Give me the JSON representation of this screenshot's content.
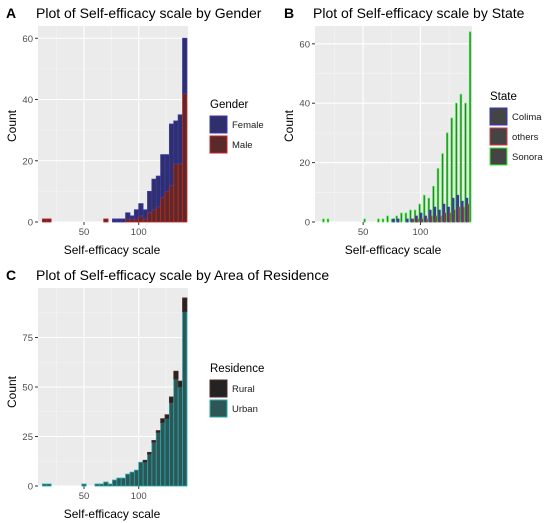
{
  "chart_data": [
    {
      "id": "A",
      "type": "bar",
      "stacked": true,
      "panel_label": "A",
      "title": "Plot of Self-efficacy scale by Gender",
      "xlabel": "Self-efficacy scale",
      "ylabel": "Count",
      "xlim": [
        8,
        145
      ],
      "ylim": [
        0,
        64
      ],
      "x_ticks": [
        50,
        100
      ],
      "y_ticks": [
        0,
        20,
        40,
        60
      ],
      "grid": true,
      "legend": {
        "title": "Gender",
        "placement": "right"
      },
      "bins": [
        14,
        18,
        22,
        26,
        30,
        34,
        38,
        42,
        46,
        50,
        54,
        58,
        62,
        66,
        70,
        74,
        78,
        82,
        86,
        90,
        94,
        98,
        102,
        106,
        110,
        114,
        118,
        122,
        126,
        130,
        134,
        138,
        142
      ],
      "series": [
        {
          "name": "Female",
          "fill": "#2f2f6b",
          "border": "#3a3ab0",
          "values": [
            0,
            0,
            0,
            0,
            0,
            0,
            0,
            0,
            0,
            0,
            0,
            0,
            0,
            0,
            0,
            0,
            1,
            1,
            1,
            2,
            1,
            3,
            4,
            3,
            7,
            10,
            10,
            14,
            12,
            20,
            14,
            16,
            18
          ]
        },
        {
          "name": "Male",
          "fill": "#5a2a2a",
          "border": "#cc2222",
          "values": [
            1,
            1,
            0,
            0,
            0,
            0,
            0,
            0,
            0,
            0,
            0,
            0,
            0,
            0,
            1,
            0,
            0,
            0,
            0,
            1,
            1,
            1,
            2,
            1,
            3,
            4,
            5,
            8,
            10,
            12,
            19,
            19,
            42
          ]
        }
      ]
    },
    {
      "id": "B",
      "type": "bar",
      "grouped": true,
      "panel_label": "B",
      "title": "Plot of Self-efficacy scale by State",
      "xlabel": "Self-efficacy scale",
      "ylabel": "Count",
      "xlim": [
        8,
        145
      ],
      "ylim": [
        0,
        66
      ],
      "x_ticks": [
        50,
        100
      ],
      "y_ticks": [
        0,
        20,
        40,
        60
      ],
      "grid": true,
      "legend": {
        "title": "State",
        "placement": "right"
      },
      "bins": [
        14,
        18,
        22,
        26,
        30,
        34,
        38,
        42,
        46,
        50,
        54,
        58,
        62,
        66,
        70,
        74,
        78,
        82,
        86,
        90,
        94,
        98,
        102,
        106,
        110,
        114,
        118,
        122,
        126,
        130,
        134,
        138,
        142
      ],
      "series": [
        {
          "name": "Colima",
          "fill": "#444444",
          "border": "#3333cc",
          "values": [
            0,
            0,
            0,
            0,
            0,
            0,
            0,
            0,
            0,
            0,
            0,
            0,
            0,
            0,
            0,
            0,
            1,
            1,
            0,
            1,
            1,
            2,
            3,
            2,
            4,
            5,
            4,
            6,
            5,
            8,
            9,
            7,
            8
          ]
        },
        {
          "name": "others",
          "fill": "#444444",
          "border": "#dd3344",
          "values": [
            0,
            0,
            0,
            0,
            0,
            0,
            0,
            0,
            0,
            0,
            0,
            0,
            0,
            0,
            0,
            0,
            0,
            0,
            0,
            0,
            1,
            1,
            1,
            1,
            2,
            2,
            2,
            3,
            3,
            4,
            5,
            5,
            6
          ]
        },
        {
          "name": "Sonora",
          "fill": "#444444",
          "border": "#33ee33",
          "values": [
            1,
            1,
            0,
            0,
            0,
            0,
            0,
            0,
            0,
            1,
            0,
            0,
            1,
            1,
            2,
            1,
            2,
            3,
            3,
            4,
            4,
            6,
            9,
            8,
            12,
            18,
            23,
            30,
            35,
            40,
            43,
            40,
            64
          ]
        }
      ]
    },
    {
      "id": "C",
      "type": "bar",
      "stacked": true,
      "panel_label": "C",
      "title": "Plot of Self-efficacy scale by Area of Residence",
      "xlabel": "Self-efficacy scale",
      "ylabel": "Count",
      "xlim": [
        8,
        145
      ],
      "ylim": [
        0,
        100
      ],
      "x_ticks": [
        50,
        100
      ],
      "y_ticks": [
        0,
        25,
        50,
        75
      ],
      "grid": true,
      "legend": {
        "title": "Residence",
        "placement": "right"
      },
      "bins": [
        14,
        18,
        22,
        26,
        30,
        34,
        38,
        42,
        46,
        50,
        54,
        58,
        62,
        66,
        70,
        74,
        78,
        82,
        86,
        90,
        94,
        98,
        102,
        106,
        110,
        114,
        118,
        122,
        126,
        130,
        134,
        138,
        142
      ],
      "series": [
        {
          "name": "Rural",
          "fill": "#232323",
          "border": "#5a2a2a",
          "values": [
            0,
            0,
            0,
            0,
            0,
            0,
            0,
            0,
            0,
            0,
            0,
            0,
            0,
            0,
            0,
            0,
            0,
            0,
            0,
            0,
            0,
            0,
            0,
            1,
            1,
            1,
            1,
            2,
            2,
            3,
            4,
            3,
            7
          ]
        },
        {
          "name": "Urban",
          "fill": "#2e5656",
          "border": "#22aaaa",
          "values": [
            1,
            1,
            0,
            0,
            0,
            0,
            0,
            0,
            0,
            1,
            0,
            0,
            1,
            1,
            2,
            1,
            3,
            4,
            4,
            6,
            7,
            8,
            12,
            12,
            16,
            22,
            27,
            32,
            34,
            42,
            54,
            50,
            88
          ]
        }
      ]
    }
  ]
}
